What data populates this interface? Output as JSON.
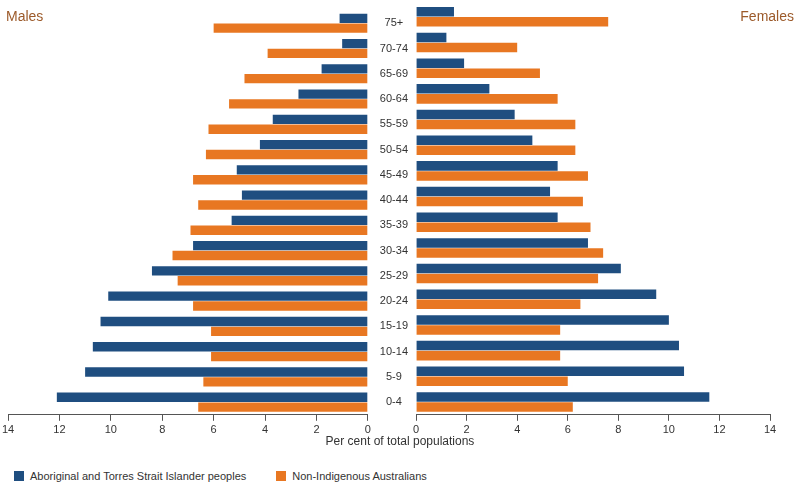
{
  "chart_data": {
    "type": "bar",
    "orientation": "horizontal",
    "xlabel": "Per cent of total populations",
    "categories": [
      "75+",
      "70-74",
      "65-69",
      "60-64",
      "55-59",
      "50-54",
      "45-49",
      "40-44",
      "35-39",
      "30-34",
      "25-29",
      "20-24",
      "15-19",
      "10-14",
      "5-9",
      "0-4"
    ],
    "xlim": [
      0,
      14
    ],
    "xticks": [
      0,
      2,
      4,
      6,
      8,
      10,
      12,
      14
    ],
    "grid": false,
    "legend": "bottom",
    "panels": [
      {
        "title": "Males",
        "series": [
          {
            "name": "Aboriginal and Torres Strait Islander peoples",
            "color": "#1f4e80",
            "values": [
              1.1,
              1.0,
              1.8,
              2.7,
              3.7,
              4.2,
              5.1,
              4.9,
              5.3,
              6.8,
              8.4,
              10.1,
              10.4,
              10.7,
              11.0,
              12.1
            ]
          },
          {
            "name": "Non-Indigenous Australians",
            "color": "#e87722",
            "values": [
              6.0,
              3.9,
              4.8,
              5.4,
              6.2,
              6.3,
              6.8,
              6.6,
              6.9,
              7.6,
              7.4,
              6.8,
              6.1,
              6.1,
              6.4,
              6.6
            ]
          }
        ]
      },
      {
        "title": "Females",
        "series": [
          {
            "name": "Aboriginal and Torres Strait Islander peoples",
            "color": "#1f4e80",
            "values": [
              1.5,
              1.2,
              1.9,
              2.9,
              3.9,
              4.6,
              5.6,
              5.3,
              5.6,
              6.8,
              8.1,
              9.5,
              10.0,
              10.4,
              10.6,
              11.6
            ]
          },
          {
            "name": "Non-Indigenous Australians",
            "color": "#e87722",
            "values": [
              7.6,
              4.0,
              4.9,
              5.6,
              6.3,
              6.3,
              6.8,
              6.6,
              6.9,
              7.4,
              7.2,
              6.5,
              5.7,
              5.7,
              6.0,
              6.2
            ]
          }
        ]
      }
    ]
  }
}
